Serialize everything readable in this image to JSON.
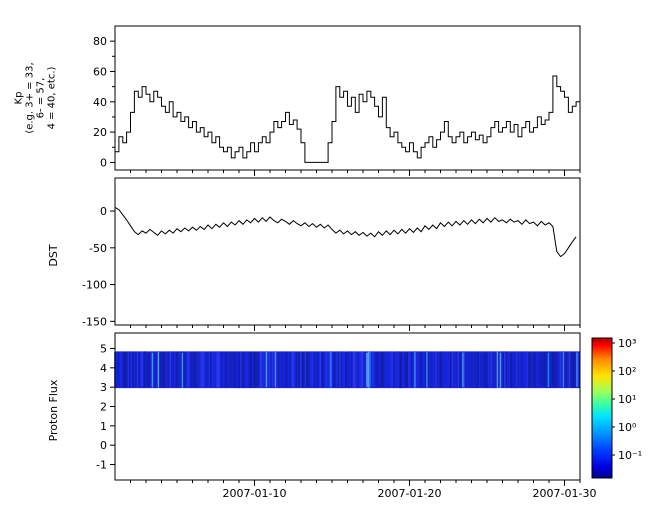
{
  "figure": {
    "background": "#ffffff"
  },
  "x_axis": {
    "range_days": [
      0,
      30
    ],
    "major_tick_days": [
      9,
      19,
      29
    ],
    "tick_labels": [
      "2007-01-10",
      "2007-01-20",
      "2007-01-30"
    ]
  },
  "chart_data": [
    {
      "type": "line",
      "name": "kp-index",
      "ylabel_lines": [
        "Kp",
        "(e.g. 3+ = 33,",
        "6- = 57,",
        "4 = 40, etc.)"
      ],
      "yticks": [
        0,
        20,
        40,
        60,
        80
      ],
      "minor_yticks": [
        10,
        30,
        50,
        70
      ],
      "ylim": [
        -5,
        90
      ],
      "step": true,
      "line_color": "#000000",
      "values": [
        7,
        17,
        13,
        20,
        33,
        47,
        43,
        50,
        45,
        40,
        47,
        43,
        37,
        33,
        40,
        30,
        33,
        27,
        30,
        23,
        27,
        20,
        23,
        17,
        20,
        13,
        17,
        10,
        7,
        10,
        3,
        7,
        10,
        3,
        7,
        13,
        7,
        13,
        17,
        13,
        20,
        27,
        23,
        27,
        33,
        25,
        28,
        22,
        13,
        0,
        0,
        0,
        0,
        0,
        0,
        13,
        27,
        50,
        43,
        47,
        37,
        43,
        33,
        45,
        40,
        47,
        43,
        37,
        30,
        43,
        23,
        17,
        20,
        13,
        10,
        7,
        13,
        7,
        3,
        10,
        13,
        17,
        10,
        15,
        20,
        27,
        17,
        13,
        17,
        20,
        13,
        17,
        20,
        15,
        18,
        13,
        17,
        23,
        27,
        20,
        23,
        27,
        20,
        25,
        17,
        23,
        27,
        20,
        23,
        30,
        25,
        28,
        33,
        57,
        50,
        47,
        43,
        33,
        37,
        40
      ]
    },
    {
      "type": "line",
      "name": "dst-index",
      "ylabel": "DST",
      "yticks": [
        0,
        -50,
        -100,
        -150
      ],
      "ylim": [
        -155,
        45
      ],
      "step": false,
      "line_color": "#000000",
      "values": [
        5,
        2,
        -5,
        -12,
        -20,
        -28,
        -32,
        -27,
        -30,
        -25,
        -29,
        -33,
        -27,
        -31,
        -26,
        -30,
        -24,
        -28,
        -23,
        -27,
        -22,
        -26,
        -21,
        -25,
        -19,
        -24,
        -18,
        -22,
        -16,
        -21,
        -15,
        -19,
        -13,
        -18,
        -12,
        -16,
        -10,
        -15,
        -9,
        -14,
        -8,
        -13,
        -16,
        -11,
        -14,
        -18,
        -13,
        -17,
        -20,
        -16,
        -21,
        -17,
        -22,
        -18,
        -23,
        -19,
        -25,
        -30,
        -26,
        -31,
        -27,
        -32,
        -28,
        -33,
        -29,
        -34,
        -30,
        -35,
        -28,
        -33,
        -27,
        -32,
        -26,
        -31,
        -25,
        -30,
        -24,
        -29,
        -23,
        -28,
        -20,
        -25,
        -19,
        -24,
        -16,
        -21,
        -15,
        -20,
        -14,
        -19,
        -13,
        -18,
        -12,
        -17,
        -11,
        -16,
        -10,
        -15,
        -9,
        -14,
        -12,
        -16,
        -11,
        -15,
        -13,
        -18,
        -12,
        -17,
        -15,
        -20,
        -14,
        -19,
        -16,
        -21,
        -55,
        -62,
        -58,
        -50,
        -42,
        -35
      ]
    },
    {
      "type": "heatmap",
      "name": "proton-flux",
      "ylabel": "Proton Flux",
      "yticks": [
        5,
        4,
        3,
        2,
        1,
        0,
        -1
      ],
      "ylim": [
        -1.8,
        5.8
      ],
      "band": {
        "y_low": 2.95,
        "y_high": 4.85,
        "value_approx": 0.1,
        "base_hue": 235
      },
      "colorbar": {
        "scale": "log",
        "value_range": [
          0.1,
          1000
        ],
        "tick_labels": [
          "10³",
          "10²",
          "10¹",
          "10⁰",
          "10⁻¹"
        ],
        "gradient_top_to_bottom": [
          {
            "pos": 0.0,
            "color": "#aa0000"
          },
          {
            "pos": 0.05,
            "color": "#ff0000"
          },
          {
            "pos": 0.15,
            "color": "#ff8700"
          },
          {
            "pos": 0.27,
            "color": "#ffe400"
          },
          {
            "pos": 0.38,
            "color": "#a0ff5a"
          },
          {
            "pos": 0.47,
            "color": "#3cffa0"
          },
          {
            "pos": 0.56,
            "color": "#00e4ff"
          },
          {
            "pos": 0.68,
            "color": "#0096ff"
          },
          {
            "pos": 0.8,
            "color": "#0040ff"
          },
          {
            "pos": 0.92,
            "color": "#0000e0"
          },
          {
            "pos": 1.0,
            "color": "#000090"
          }
        ]
      }
    }
  ]
}
